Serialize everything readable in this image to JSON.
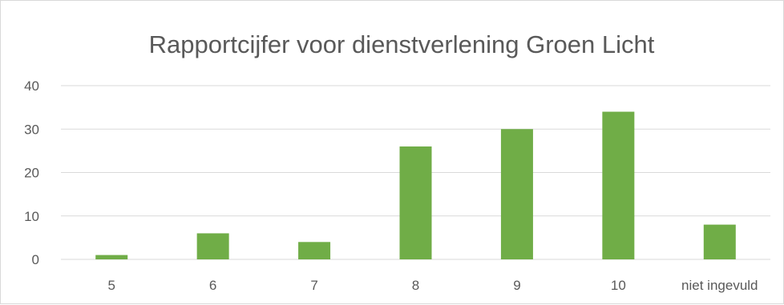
{
  "chart_data": {
    "type": "bar",
    "title": "Rapportcijfer voor dienstverlening Groen Licht",
    "xlabel": "",
    "ylabel": "",
    "categories": [
      "5",
      "6",
      "7",
      "8",
      "9",
      "10",
      "niet ingevuld"
    ],
    "values": [
      1,
      6,
      4,
      26,
      30,
      34,
      8
    ],
    "ylim": [
      0,
      40
    ],
    "yticks": [
      "0",
      "10",
      "20",
      "30",
      "40"
    ],
    "grid": true,
    "legend": "none",
    "bar_color": "#70ad47",
    "grid_color": "#d9d9d9",
    "text_color": "#595959"
  }
}
